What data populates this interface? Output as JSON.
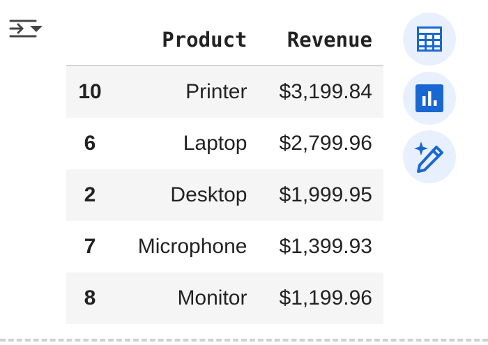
{
  "table": {
    "columns": [
      "",
      "Product",
      "Revenue"
    ],
    "rows": [
      {
        "index": "10",
        "product": "Printer",
        "revenue": "$3,199.84"
      },
      {
        "index": "6",
        "product": "Laptop",
        "revenue": "$2,799.96"
      },
      {
        "index": "2",
        "product": "Desktop",
        "revenue": "$1,999.95"
      },
      {
        "index": "7",
        "product": "Microphone",
        "revenue": "$1,399.93"
      },
      {
        "index": "8",
        "product": "Monitor",
        "revenue": "$1,199.96"
      }
    ]
  },
  "icons": {
    "output_menu": "output-actions-icon",
    "table_view": "table-grid-icon",
    "chart_view": "bar-chart-icon",
    "generate": "sparkle-pencil-icon"
  },
  "colors": {
    "accent_blue": "#1967d2",
    "button_bg": "#e8f0fe",
    "stripe_bg": "#f5f5f5"
  }
}
